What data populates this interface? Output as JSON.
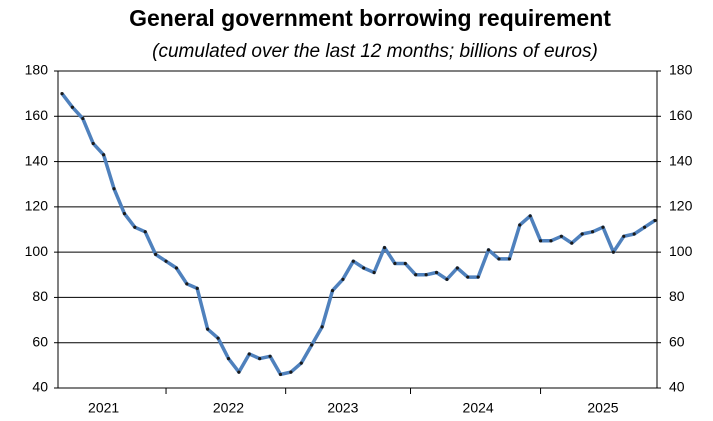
{
  "chart_data": {
    "type": "line",
    "title": "General government borrowing requirement",
    "subtitle": "(cumulated over the last 12 months; billions of euros)",
    "categories": [
      null,
      null,
      null,
      null,
      "2021",
      null,
      null,
      null,
      null,
      null,
      null,
      null,
      null,
      null,
      null,
      null,
      "2022",
      null,
      null,
      null,
      null,
      null,
      null,
      null,
      null,
      null,
      null,
      "2023",
      null,
      null,
      null,
      null,
      null,
      null,
      null,
      null,
      null,
      null,
      null,
      null,
      "2024",
      null,
      null,
      null,
      null,
      null,
      null,
      null,
      null,
      null,
      null,
      null,
      "2025",
      null,
      null,
      null,
      null,
      null
    ],
    "series": [
      {
        "name": "borrowing requirement",
        "color": "#4f81bd",
        "values": [
          170,
          164,
          159,
          148,
          143,
          128,
          117,
          111,
          109,
          99,
          96,
          93,
          86,
          84,
          66,
          62,
          53,
          47,
          55,
          53,
          54,
          46,
          47,
          51,
          59,
          67,
          83,
          88,
          96,
          93,
          91,
          102,
          95,
          95,
          90,
          90,
          91,
          88,
          93,
          89,
          89,
          101,
          97,
          97,
          112,
          116,
          105,
          105,
          107,
          104,
          108,
          109,
          111,
          100,
          107,
          108,
          111,
          114
        ]
      }
    ],
    "ylim": [
      40,
      180
    ],
    "yticks": [
      40,
      60,
      80,
      100,
      120,
      140,
      160,
      180
    ],
    "grid": true
  }
}
